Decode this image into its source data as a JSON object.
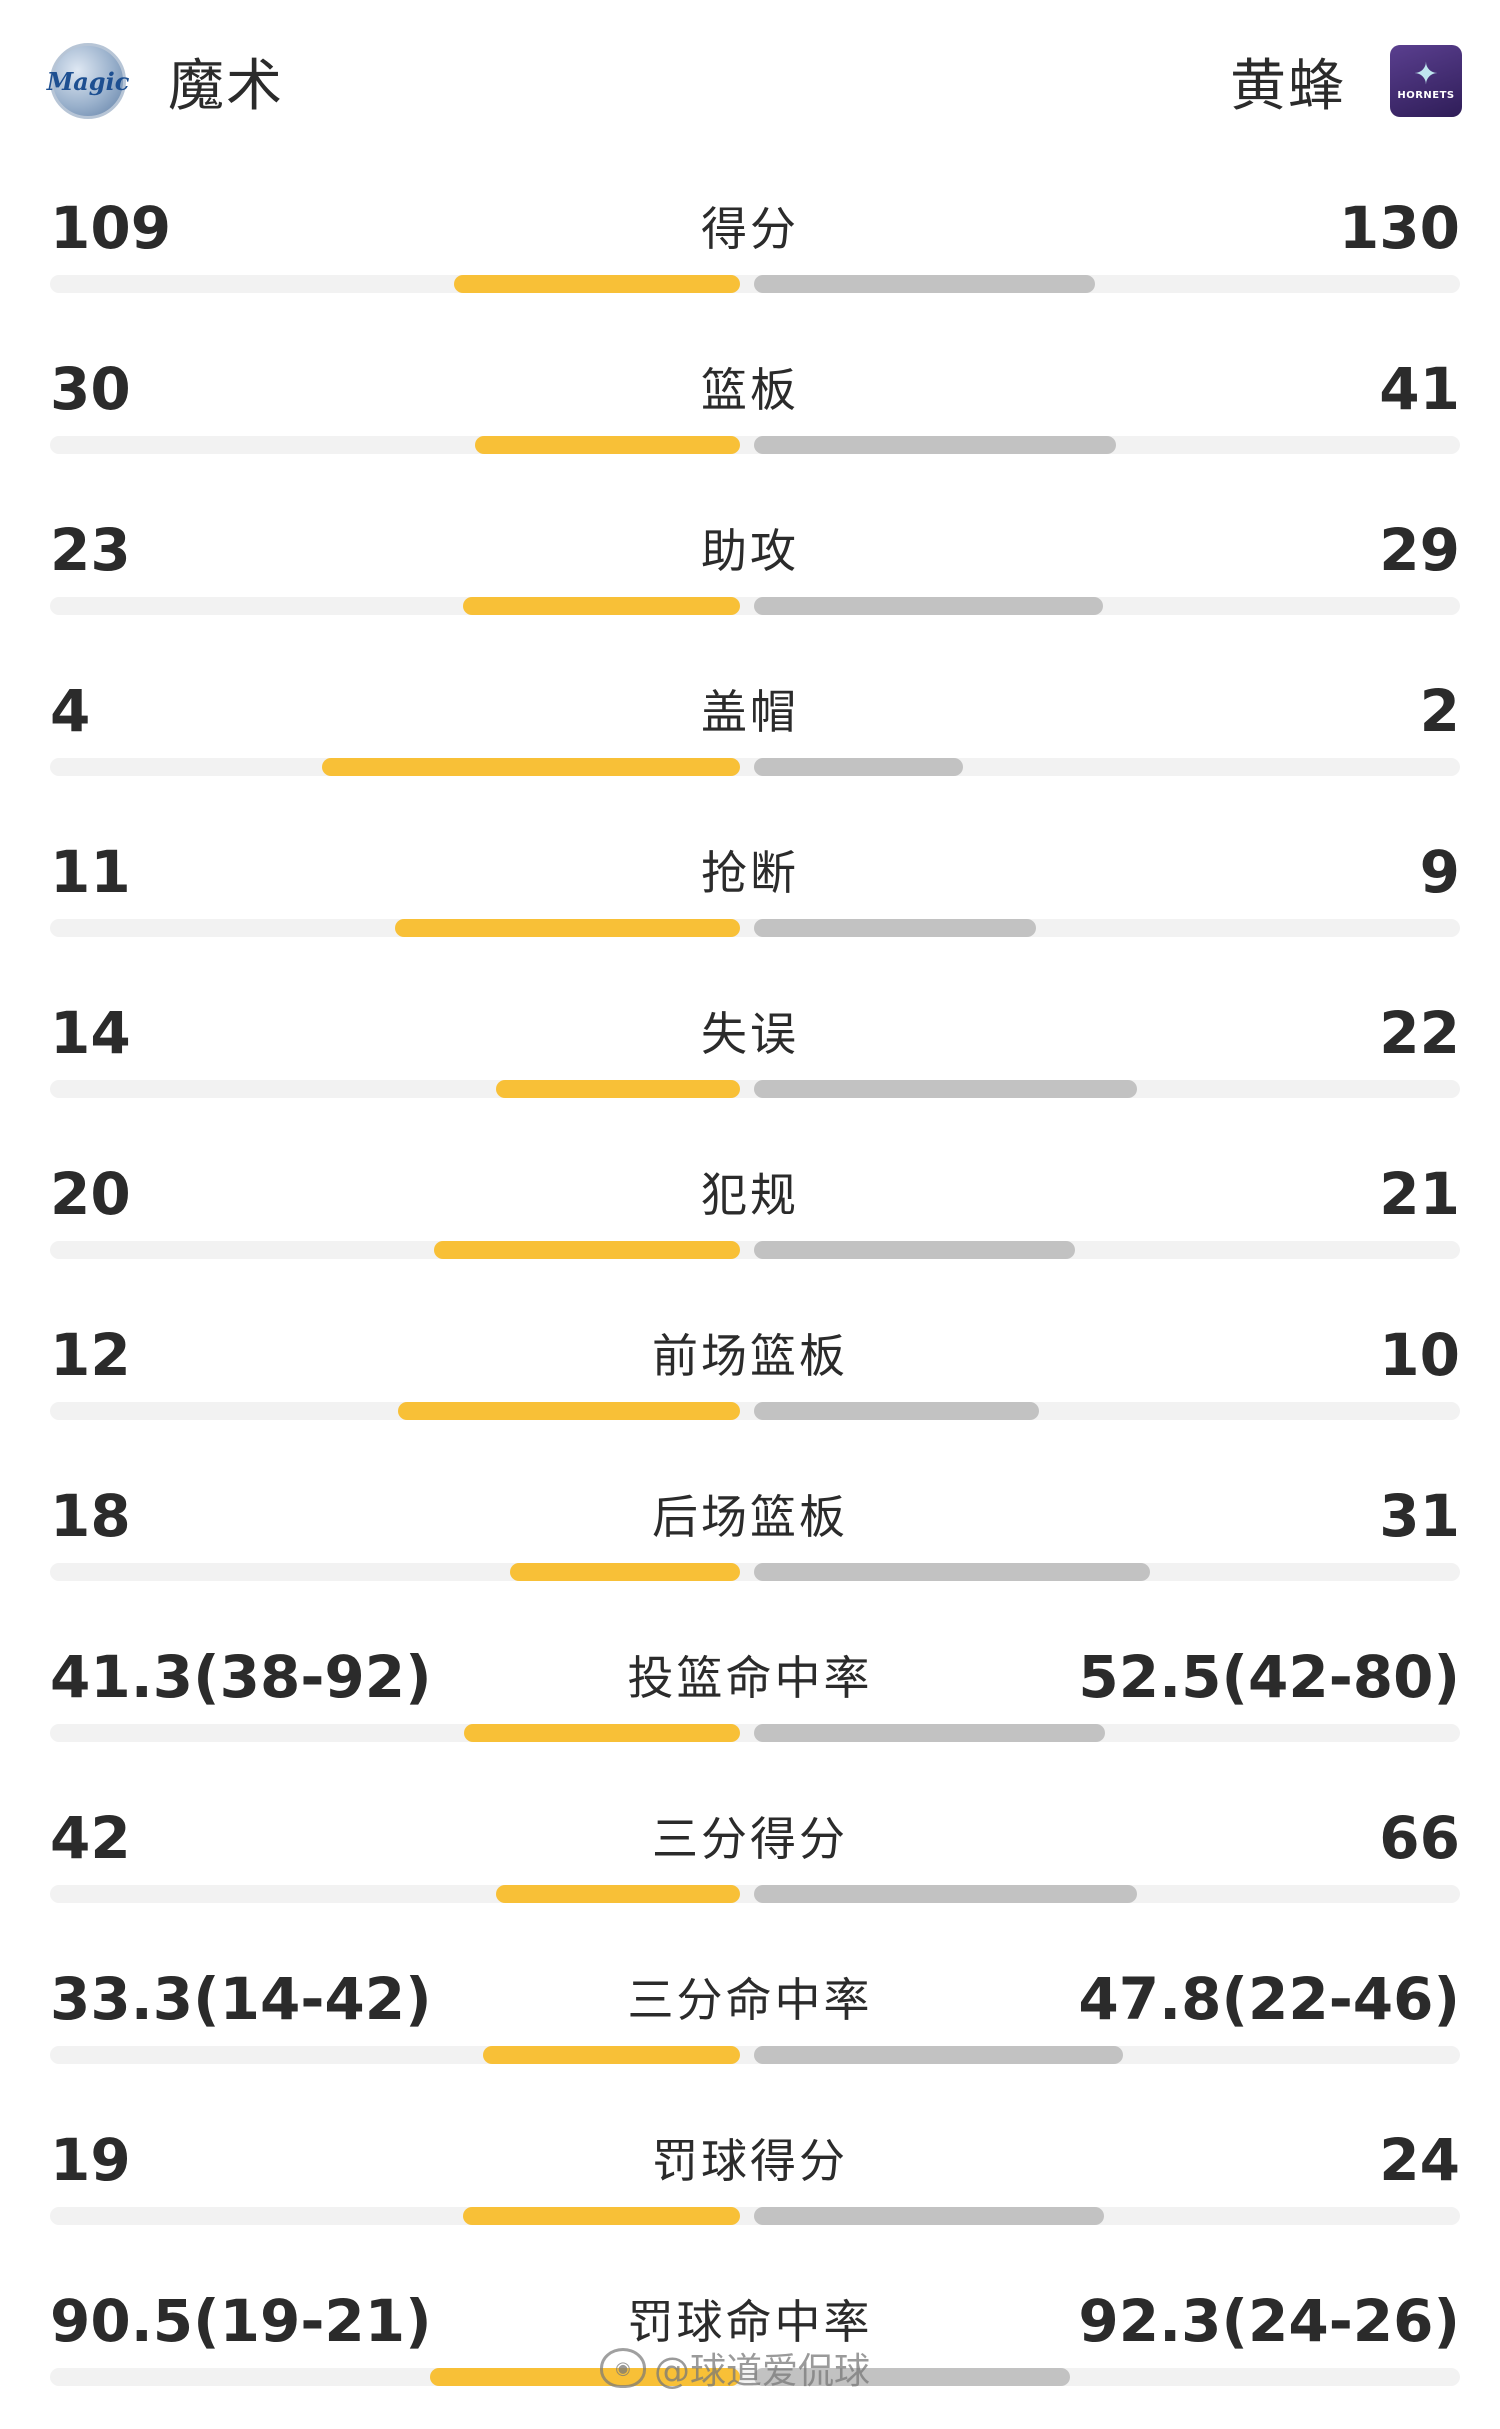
{
  "header": {
    "home": {
      "name": "魔术",
      "logo_icon": "orlando-magic-logo-icon",
      "logo_text": "Magic"
    },
    "away": {
      "name": "黄蜂",
      "logo_icon": "charlotte-hornets-logo-icon",
      "logo_text": "HORNETS"
    }
  },
  "colors": {
    "home_bar": "#f8c037",
    "away_bar": "#c2c2c2",
    "track": "#f2f2f2"
  },
  "stats": [
    {
      "label": "得分",
      "home": "109",
      "away": "130",
      "home_num": 109,
      "away_num": 130
    },
    {
      "label": "篮板",
      "home": "30",
      "away": "41",
      "home_num": 30,
      "away_num": 41
    },
    {
      "label": "助攻",
      "home": "23",
      "away": "29",
      "home_num": 23,
      "away_num": 29
    },
    {
      "label": "盖帽",
      "home": "4",
      "away": "2",
      "home_num": 4,
      "away_num": 2
    },
    {
      "label": "抢断",
      "home": "11",
      "away": "9",
      "home_num": 11,
      "away_num": 9
    },
    {
      "label": "失误",
      "home": "14",
      "away": "22",
      "home_num": 14,
      "away_num": 22
    },
    {
      "label": "犯规",
      "home": "20",
      "away": "21",
      "home_num": 20,
      "away_num": 21
    },
    {
      "label": "前场篮板",
      "home": "12",
      "away": "10",
      "home_num": 12,
      "away_num": 10
    },
    {
      "label": "后场篮板",
      "home": "18",
      "away": "31",
      "home_num": 18,
      "away_num": 31
    },
    {
      "label": "投篮命中率",
      "home": "41.3(38-92)",
      "away": "52.5(42-80)",
      "home_num": 41.3,
      "away_num": 52.5
    },
    {
      "label": "三分得分",
      "home": "42",
      "away": "66",
      "home_num": 42,
      "away_num": 66
    },
    {
      "label": "三分命中率",
      "home": "33.3(14-42)",
      "away": "47.8(22-46)",
      "home_num": 33.3,
      "away_num": 47.8
    },
    {
      "label": "罚球得分",
      "home": "19",
      "away": "24",
      "home_num": 19,
      "away_num": 24
    },
    {
      "label": "罚球命中率",
      "home": "90.5(19-21)",
      "away": "92.3(24-26)",
      "home_num": 90.5,
      "away_num": 92.3
    }
  ],
  "watermark": {
    "text": "@球道爱侃球",
    "icon": "weibo-icon"
  }
}
